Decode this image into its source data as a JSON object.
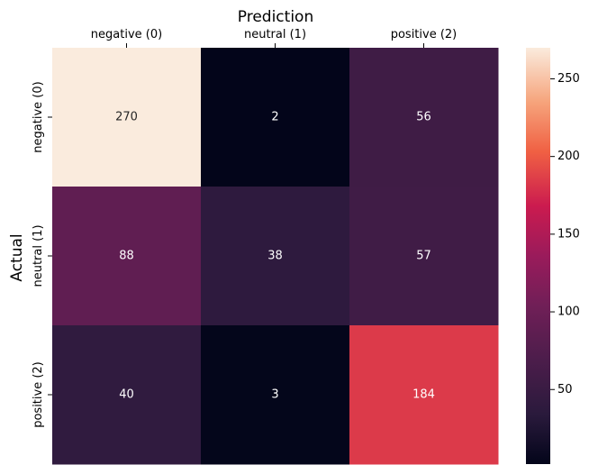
{
  "chart_data": {
    "type": "heatmap",
    "title": "",
    "xlabel": "Prediction",
    "ylabel": "Actual",
    "x_categories": [
      "negative (0)",
      "neutral (1)",
      "positive (2)"
    ],
    "y_categories": [
      "negative (0)",
      "neutral (1)",
      "positive (2)"
    ],
    "values": [
      [
        270,
        2,
        56
      ],
      [
        88,
        38,
        57
      ],
      [
        40,
        3,
        184
      ]
    ],
    "x_axis_position": "top",
    "colormap": "rocket",
    "colorbar": {
      "min": 2,
      "max": 270,
      "ticks": [
        "50",
        "100",
        "150",
        "200",
        "250"
      ]
    },
    "grid": false,
    "legend": "none"
  }
}
